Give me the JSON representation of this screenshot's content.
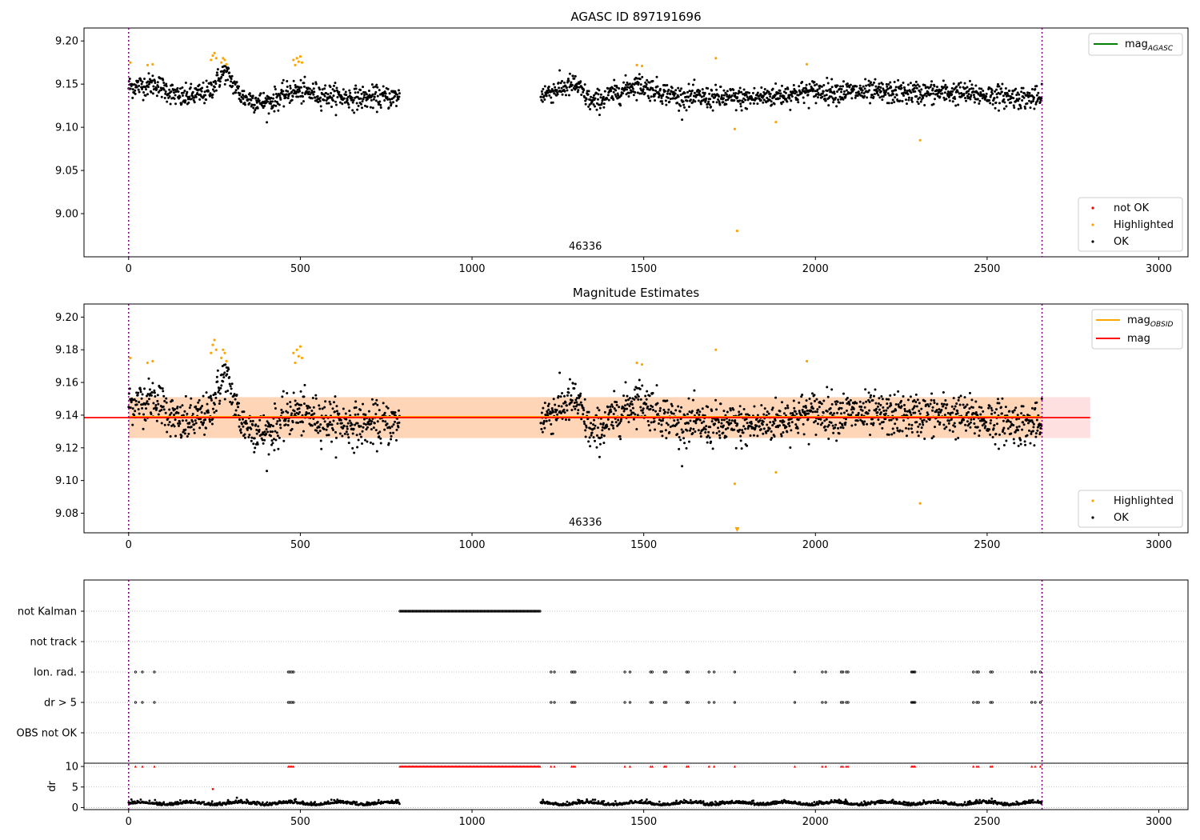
{
  "chart_data": [
    {
      "type": "scatter",
      "title": "AGASC ID 897191696",
      "xlim": [
        -130,
        3085
      ],
      "ylim": [
        8.95,
        9.215
      ],
      "x_ticks": [
        0,
        500,
        1000,
        1500,
        2000,
        2500,
        3000
      ],
      "y_ticks": [
        9.0,
        9.05,
        9.1,
        9.15,
        9.2
      ],
      "y_tick_labels": [
        "9.00",
        "9.05",
        "9.10",
        "9.15",
        "9.20"
      ],
      "obsid_label": "46336",
      "obsid_label_x": 1330,
      "obsid_boundaries": [
        0,
        2660
      ],
      "segments": [
        {
          "x_start": 0,
          "x_end": 790,
          "baseline": [
            [
              0,
              9.147
            ],
            [
              80,
              9.15
            ],
            [
              150,
              9.134
            ],
            [
              230,
              9.14
            ],
            [
              280,
              9.165
            ],
            [
              330,
              9.135
            ],
            [
              400,
              9.128
            ],
            [
              480,
              9.142
            ],
            [
              520,
              9.14
            ],
            [
              650,
              9.134
            ],
            [
              790,
              9.135
            ]
          ]
        },
        {
          "x_start": 1200,
          "x_end": 2660,
          "baseline": [
            [
              1200,
              9.138
            ],
            [
              1300,
              9.15
            ],
            [
              1350,
              9.128
            ],
            [
              1480,
              9.15
            ],
            [
              1600,
              9.135
            ],
            [
              1800,
              9.133
            ],
            [
              2000,
              9.142
            ],
            [
              2200,
              9.14
            ],
            [
              2400,
              9.14
            ],
            [
              2660,
              9.133
            ]
          ]
        }
      ],
      "noise": 0.0065,
      "highlighted": [
        [
          5,
          9.175
        ],
        [
          55,
          9.172
        ],
        [
          70,
          9.173
        ],
        [
          240,
          9.178
        ],
        [
          245,
          9.183
        ],
        [
          250,
          9.186
        ],
        [
          255,
          9.18
        ],
        [
          270,
          9.175
        ],
        [
          275,
          9.18
        ],
        [
          280,
          9.178
        ],
        [
          285,
          9.173
        ],
        [
          480,
          9.178
        ],
        [
          485,
          9.172
        ],
        [
          490,
          9.18
        ],
        [
          495,
          9.176
        ],
        [
          500,
          9.182
        ],
        [
          505,
          9.175
        ],
        [
          1480,
          9.172
        ],
        [
          1495,
          9.171
        ],
        [
          1710,
          9.18
        ],
        [
          1765,
          9.098
        ],
        [
          1772,
          8.98
        ],
        [
          1885,
          9.106
        ],
        [
          1975,
          9.173
        ],
        [
          2305,
          9.085
        ]
      ],
      "marker_legend": [
        {
          "label": "not OK",
          "color": "#ff0000"
        },
        {
          "label": "Highlighted",
          "color": "#ffa500"
        },
        {
          "label": "OK",
          "color": "#000000"
        }
      ],
      "line_legend": [
        {
          "label": "mag",
          "subscript": "AGASC",
          "color": "#008000"
        }
      ]
    },
    {
      "type": "scatter",
      "title": "Magnitude Estimates",
      "xlim": [
        -130,
        3085
      ],
      "ylim": [
        9.068,
        9.208
      ],
      "x_ticks": [
        0,
        500,
        1000,
        1500,
        2000,
        2500,
        3000
      ],
      "y_ticks": [
        9.08,
        9.1,
        9.12,
        9.14,
        9.16,
        9.18,
        9.2
      ],
      "y_tick_labels": [
        "9.08",
        "9.10",
        "9.12",
        "9.14",
        "9.16",
        "9.18",
        "9.20"
      ],
      "obsid_label": "46336",
      "obsid_label_x": 1330,
      "obsid_boundaries": [
        0,
        2660
      ],
      "mag": 9.1385,
      "mag_band": [
        9.126,
        9.151
      ],
      "mag_extent": [
        0,
        2800
      ],
      "mag_obsid": 9.139,
      "obsid_band": [
        9.126,
        9.151
      ],
      "obsid_extent": [
        0,
        2660
      ],
      "highlighted": [
        [
          5,
          9.175
        ],
        [
          55,
          9.172
        ],
        [
          70,
          9.173
        ],
        [
          240,
          9.178
        ],
        [
          245,
          9.183
        ],
        [
          250,
          9.186
        ],
        [
          255,
          9.18
        ],
        [
          270,
          9.175
        ],
        [
          275,
          9.18
        ],
        [
          280,
          9.178
        ],
        [
          285,
          9.173
        ],
        [
          480,
          9.178
        ],
        [
          485,
          9.172
        ],
        [
          490,
          9.18
        ],
        [
          495,
          9.176
        ],
        [
          500,
          9.182
        ],
        [
          505,
          9.175
        ],
        [
          1480,
          9.172
        ],
        [
          1495,
          9.171
        ],
        [
          1710,
          9.18
        ],
        [
          1765,
          9.098
        ],
        [
          1975,
          9.173
        ],
        [
          1885,
          9.105
        ],
        [
          2305,
          9.086
        ]
      ],
      "offscale_marker_x": 1772,
      "marker_legend": [
        {
          "label": "Highlighted",
          "color": "#ffa500"
        },
        {
          "label": "OK",
          "color": "#000000"
        }
      ],
      "line_legend": [
        {
          "label": "mag",
          "subscript": "OBSID",
          "color": "#ffa500"
        },
        {
          "label": "mag",
          "subscript": "",
          "color": "#ff0000"
        }
      ]
    },
    {
      "type": "scatter",
      "title": "",
      "xlim": [
        -130,
        3085
      ],
      "categories": [
        "not Kalman",
        "not track",
        "Ion. rad.",
        "dr > 5",
        "OBS not OK"
      ],
      "not_kalman_range": [
        790,
        1200
      ],
      "flag_x": [
        20,
        40,
        75,
        465,
        470,
        475,
        480,
        1230,
        1240,
        1290,
        1295,
        1300,
        1445,
        1460,
        1520,
        1525,
        1560,
        1565,
        1625,
        1630,
        1690,
        1705,
        1765,
        1940,
        2020,
        2030,
        2075,
        2080,
        2090,
        2095,
        2280,
        2283,
        2287,
        2290,
        2460,
        2470,
        2475,
        2510,
        2515,
        2630,
        2640,
        2655
      ],
      "obsid_boundaries": [
        0,
        2660
      ],
      "x_ticks": [
        0,
        500,
        1000,
        1500,
        2000,
        2500,
        3000
      ]
    },
    {
      "type": "scatter",
      "title": "",
      "ylabel": "dr",
      "xlim": [
        -130,
        3085
      ],
      "ylim": [
        -0.5,
        10.8
      ],
      "y_ticks": [
        0,
        5,
        10
      ],
      "y_tick_labels": [
        "0",
        "5",
        "10"
      ],
      "x_ticks": [
        0,
        500,
        1000,
        1500,
        2000,
        2500,
        3000
      ],
      "x_tick_labels": [
        "0",
        "500",
        "1000",
        "1500",
        "2000",
        "2500",
        "3000"
      ],
      "dr_segments": [
        [
          0,
          790
        ],
        [
          1200,
          2660
        ]
      ],
      "dr_base": 0.8,
      "dr_clip_value": 10,
      "dr_outlier": [
        245,
        4.5
      ],
      "obsid_boundaries": [
        0,
        2660
      ]
    }
  ]
}
